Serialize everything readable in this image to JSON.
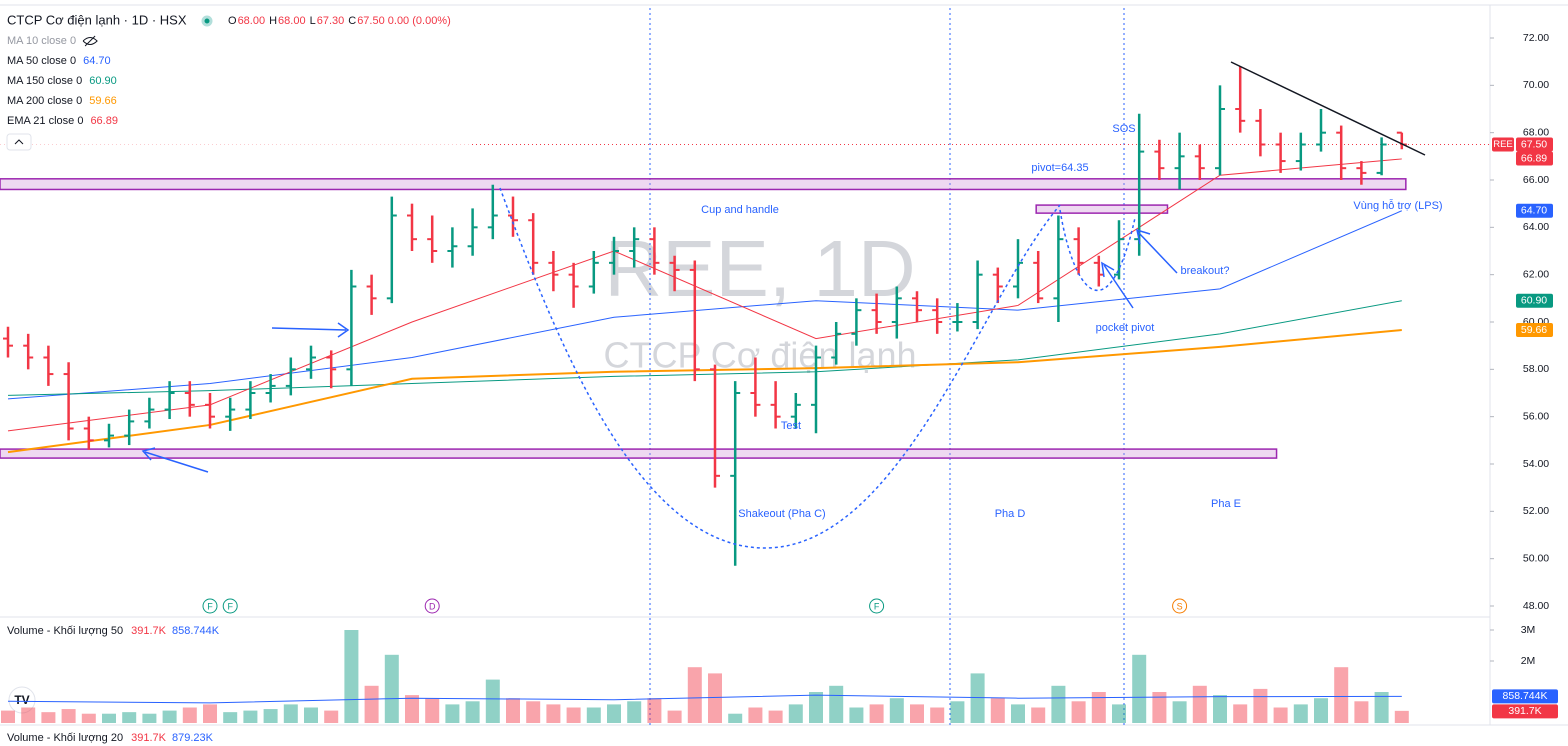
{
  "chart_data": {
    "type": "ohlc",
    "title": "CTCP Cơ điện lạnh · 1D · HSX",
    "header_values": [
      {
        "label": "O",
        "value": "68.00"
      },
      {
        "label": "H",
        "value": "68.00"
      },
      {
        "label": "L",
        "value": "67.30"
      },
      {
        "label": "C",
        "value": "67.50 0.00 (0.00%)"
      }
    ],
    "watermark": "REE, 1D",
    "watermark_sub": "CTCP Cơ điện lạnh",
    "symbol_tag": "REE",
    "last_label": "67.50",
    "up_color": "#089981",
    "down_color": "#f23645",
    "grid": false,
    "ylim": [
      47.4,
      73.3
    ],
    "yticks": [
      {
        "value": 48,
        "label": "48.00"
      },
      {
        "value": 50,
        "label": "50.00"
      },
      {
        "value": 52,
        "label": "52.00"
      },
      {
        "value": 54,
        "label": "54.00"
      },
      {
        "value": 56,
        "label": "56.00"
      },
      {
        "value": 58,
        "label": "58.00"
      },
      {
        "value": 60,
        "label": "60.00"
      },
      {
        "value": 62,
        "label": "62.00"
      },
      {
        "value": 64,
        "label": "64.00"
      },
      {
        "value": 66,
        "label": "66.00"
      },
      {
        "value": 68,
        "label": "68.00"
      },
      {
        "value": 70,
        "label": "70.00"
      },
      {
        "value": 72,
        "label": "72.00"
      }
    ],
    "open": [
      59.3,
      59,
      58.5,
      57.8,
      55.5,
      55,
      55.2,
      55.8,
      56.3,
      57,
      56.5,
      56,
      56.3,
      57,
      57.3,
      58,
      58.5,
      58,
      61.5,
      61,
      64.5,
      63.5,
      63,
      63.2,
      64,
      64.5,
      64.3,
      62.5,
      62,
      61.5,
      62.5,
      63,
      63.5,
      62.5,
      62.2,
      58,
      53.5,
      57,
      56.5,
      56,
      56.5,
      58.5,
      59.5,
      60.5,
      60,
      61,
      60.5,
      60,
      60,
      62,
      61.5,
      62.5,
      61,
      63.5,
      62.5,
      62,
      63.5,
      67.2,
      66.5,
      67,
      66.5,
      69,
      68.5,
      67.5,
      66.8,
      67.5,
      68,
      66.5,
      66.3,
      68
    ],
    "high": [
      59.8,
      59.5,
      59,
      58.3,
      56,
      55.7,
      56.3,
      56.8,
      57.5,
      57.5,
      57,
      56.8,
      57.5,
      57.8,
      58.5,
      59,
      58.8,
      62.2,
      62,
      65.3,
      65,
      64.5,
      64,
      64.8,
      65.8,
      65.3,
      64.6,
      63,
      62.5,
      63,
      63.6,
      64,
      64,
      62.8,
      62.6,
      58.2,
      57.5,
      58.5,
      57.5,
      57,
      59,
      60,
      61,
      61.2,
      61.5,
      61.3,
      61,
      60.8,
      62.6,
      62.3,
      63.5,
      63,
      64.5,
      64,
      62.8,
      64.3,
      68.8,
      67.7,
      68,
      67.5,
      70,
      70.8,
      69,
      68,
      68,
      69,
      68.3,
      66.8,
      67.8,
      68
    ],
    "low": [
      58.5,
      58,
      57.3,
      55,
      54.6,
      54.7,
      54.8,
      55.5,
      55.9,
      56,
      55.5,
      55.4,
      55.9,
      56.6,
      56.9,
      57.6,
      57.2,
      57.3,
      60.3,
      60.8,
      63,
      62.5,
      62.3,
      62.8,
      63.5,
      63.6,
      62,
      61.3,
      60.6,
      61.2,
      62,
      62.3,
      62,
      61.3,
      57.5,
      53,
      49.7,
      56,
      55.5,
      55.5,
      55.3,
      58.2,
      59,
      59.5,
      59.3,
      60,
      59.5,
      59.6,
      59.7,
      60.8,
      61,
      60.8,
      60,
      62,
      61.5,
      61.8,
      62.8,
      66,
      65.6,
      66,
      66.2,
      68,
      67,
      66.3,
      66.4,
      67.2,
      66,
      65.8,
      66.2,
      67.3
    ],
    "close": [
      59,
      58.5,
      57.8,
      55.5,
      55,
      55.2,
      55.8,
      56.3,
      57,
      56.5,
      56,
      56.3,
      57,
      57.3,
      58,
      58.5,
      58,
      61.5,
      61,
      64.5,
      63.5,
      63,
      63.2,
      64,
      64.5,
      64.3,
      62.5,
      62,
      61.5,
      62.5,
      63,
      63.5,
      62.5,
      62.2,
      58,
      53.5,
      57,
      56.5,
      56,
      56.5,
      58.5,
      59.5,
      60.5,
      60,
      61,
      60.5,
      60,
      60,
      62,
      61.5,
      62.5,
      61,
      63.5,
      62.5,
      62,
      63.5,
      67.2,
      66.5,
      67,
      66.5,
      69,
      68.5,
      67.5,
      66.8,
      67.5,
      68,
      66.5,
      66.3,
      67.5,
      67.5
    ],
    "ma_x": [
      0,
      10,
      20,
      30,
      40,
      50,
      60,
      69
    ],
    "series": [
      {
        "name": "MA 10 close 0",
        "color": "#787b86",
        "hidden": true
      },
      {
        "name": "MA 50 close 0",
        "color": "#2962ff",
        "values": [
          56.75,
          57.4,
          58.5,
          60.2,
          60.9,
          60.5,
          61.4,
          64.7
        ],
        "value_label": "64.70"
      },
      {
        "name": "MA 150 close 0",
        "color": "#089981",
        "values": [
          56.9,
          57.1,
          57.4,
          57.7,
          57.9,
          58.4,
          59.5,
          60.9
        ],
        "value_label": "60.90"
      },
      {
        "name": "MA 200 close 0",
        "color": "#ff9800",
        "values": [
          54.5,
          55.65,
          57.6,
          57.9,
          58.05,
          58.3,
          58.95,
          59.66
        ],
        "value_label": "59.66"
      },
      {
        "name": "EMA 21 close 0",
        "color": "#f23645",
        "values": [
          55.4,
          56.5,
          60,
          63,
          59.3,
          60.7,
          66.2,
          66.89
        ],
        "value_label": "66.89"
      }
    ],
    "zones": [
      {
        "top": 66.05,
        "bottom": 65.6,
        "start": -0.4,
        "end": 69.2
      },
      {
        "top": 54.63,
        "bottom": 54.25,
        "start": -0.4,
        "end": 62.8
      },
      {
        "top": 64.94,
        "bottom": 64.6,
        "start": 50.9,
        "end": 57.4
      }
    ],
    "events": [
      {
        "label": "F",
        "bar": 10,
        "color": "#089981"
      },
      {
        "label": "F",
        "bar": 11,
        "color": "#089981"
      },
      {
        "label": "D",
        "bar": 21,
        "color": "#9c27b0"
      },
      {
        "label": "F",
        "bar": 43,
        "color": "#089981"
      },
      {
        "label": "S",
        "bar": 58,
        "color": "#f57c00"
      }
    ],
    "annotations": [
      "Cup and handle",
      "pivot=64.35",
      "SOS",
      "breakout?",
      "pocket pivot",
      "Test",
      "Shakeout (Pha C)",
      "Pha D",
      "Pha E",
      "Vùng hỗ trợ (LPS)"
    ],
    "volume": {
      "title": "Volume - Khối lượng 50",
      "last_label": "391.7K",
      "ma_label": "858.744K",
      "ma_color": "#2962ff",
      "values": [
        400000,
        500000,
        350000,
        450000,
        300000,
        300000,
        350000,
        300000,
        400000,
        500000,
        600000,
        350000,
        400000,
        450000,
        600000,
        500000,
        400000,
        3000000,
        1200000,
        2200000,
        900000,
        800000,
        600000,
        700000,
        1400000,
        800000,
        700000,
        600000,
        500000,
        500000,
        600000,
        700000,
        800000,
        400000,
        1800000,
        1600000,
        300000,
        500000,
        400000,
        600000,
        1000000,
        1200000,
        500000,
        600000,
        800000,
        600000,
        500000,
        700000,
        1600000,
        800000,
        600000,
        500000,
        1200000,
        700000,
        1000000,
        600000,
        2200000,
        1000000,
        700000,
        1200000,
        900000,
        600000,
        1100000,
        500000,
        600000,
        800000,
        1800000,
        700000,
        1000000,
        391700
      ],
      "ma": [
        700000,
        650000,
        800000,
        750000,
        900000,
        800000,
        850000,
        858744
      ],
      "ylim": [
        0,
        3200000
      ],
      "yticks": [
        {
          "value": 2000000,
          "label": "2M"
        },
        {
          "value": 3000000,
          "label": "3M"
        }
      ]
    },
    "volume20": {
      "title": "Volume - Khối lượng 20",
      "last_label": "391.7K",
      "ma_label": "879.23K"
    }
  }
}
